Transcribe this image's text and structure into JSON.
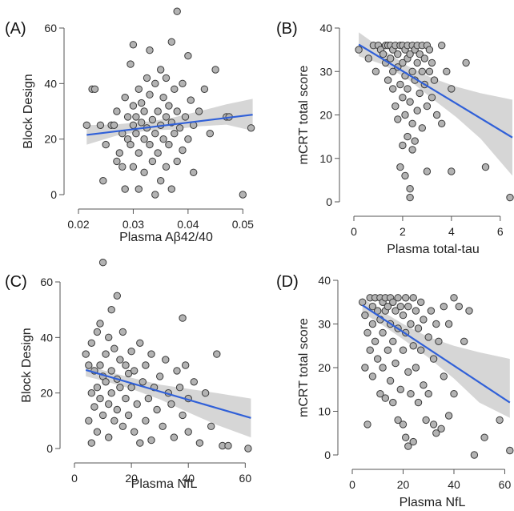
{
  "style": {
    "point_fill": "#b3b3b3",
    "point_stroke": "#3a3a3a",
    "line_color": "#3060d8",
    "band_color": "#cfcfcf",
    "axis_color": "#555555"
  },
  "chart_data": [
    {
      "panel": "(A)",
      "type": "scatter",
      "xlabel": "Plasma Aβ42/40",
      "ylabel": "Block Design",
      "xlim": [
        0.02,
        0.052
      ],
      "ylim": [
        0,
        60
      ],
      "xticks": [
        0.02,
        0.03,
        0.04,
        0.05
      ],
      "xtick_labels": [
        "0.02",
        "0.03",
        "0.04",
        "0.05"
      ],
      "yticks": [
        0,
        20,
        40,
        60
      ],
      "ytick_labels": [
        "0",
        "20",
        "40",
        "60"
      ],
      "fit": {
        "x": [
          0.0215,
          0.0518
        ],
        "y": [
          21.5,
          28.8
        ]
      },
      "band": {
        "x": [
          0.0215,
          0.027,
          0.033,
          0.037,
          0.042,
          0.047,
          0.0518
        ],
        "upper": [
          25.0,
          25.3,
          26.4,
          27.6,
          30.0,
          32.5,
          34.5
        ],
        "lower": [
          18.0,
          21.3,
          23.2,
          23.4,
          24.6,
          25.2,
          23.0
        ]
      },
      "points": [
        [
          0.0215,
          25
        ],
        [
          0.0225,
          38
        ],
        [
          0.023,
          38
        ],
        [
          0.024,
          25
        ],
        [
          0.0245,
          5
        ],
        [
          0.025,
          18
        ],
        [
          0.026,
          25
        ],
        [
          0.0265,
          25
        ],
        [
          0.027,
          12
        ],
        [
          0.027,
          30
        ],
        [
          0.0275,
          15
        ],
        [
          0.028,
          10
        ],
        [
          0.028,
          22
        ],
        [
          0.0285,
          2
        ],
        [
          0.0285,
          35
        ],
        [
          0.029,
          20
        ],
        [
          0.029,
          28
        ],
        [
          0.0295,
          47
        ],
        [
          0.0295,
          18
        ],
        [
          0.03,
          54
        ],
        [
          0.03,
          25
        ],
        [
          0.03,
          32
        ],
        [
          0.03,
          10
        ],
        [
          0.0305,
          22
        ],
        [
          0.0305,
          28
        ],
        [
          0.031,
          15
        ],
        [
          0.031,
          38
        ],
        [
          0.031,
          2
        ],
        [
          0.0315,
          26
        ],
        [
          0.0315,
          33
        ],
        [
          0.032,
          20
        ],
        [
          0.032,
          30
        ],
        [
          0.032,
          8
        ],
        [
          0.0325,
          42
        ],
        [
          0.0325,
          24
        ],
        [
          0.033,
          52
        ],
        [
          0.033,
          18
        ],
        [
          0.033,
          36
        ],
        [
          0.0335,
          27
        ],
        [
          0.0335,
          12
        ],
        [
          0.034,
          40
        ],
        [
          0.034,
          22
        ],
        [
          0.034,
          0
        ],
        [
          0.0345,
          30
        ],
        [
          0.0345,
          15
        ],
        [
          0.035,
          45
        ],
        [
          0.035,
          25
        ],
        [
          0.035,
          5
        ],
        [
          0.0355,
          35
        ],
        [
          0.0355,
          20
        ],
        [
          0.036,
          28
        ],
        [
          0.036,
          42
        ],
        [
          0.036,
          10
        ],
        [
          0.0365,
          32
        ],
        [
          0.0365,
          18
        ],
        [
          0.037,
          55
        ],
        [
          0.037,
          26
        ],
        [
          0.037,
          2
        ],
        [
          0.0375,
          38
        ],
        [
          0.0375,
          22
        ],
        [
          0.038,
          66
        ],
        [
          0.038,
          30
        ],
        [
          0.038,
          12
        ],
        [
          0.0385,
          24
        ],
        [
          0.039,
          40
        ],
        [
          0.039,
          16
        ],
        [
          0.0395,
          28
        ],
        [
          0.04,
          50
        ],
        [
          0.04,
          20
        ],
        [
          0.0405,
          34
        ],
        [
          0.041,
          25
        ],
        [
          0.041,
          8
        ],
        [
          0.042,
          30
        ],
        [
          0.043,
          38
        ],
        [
          0.044,
          22
        ],
        [
          0.045,
          45
        ],
        [
          0.047,
          28
        ],
        [
          0.0475,
          28
        ],
        [
          0.05,
          0
        ],
        [
          0.0515,
          24
        ]
      ]
    },
    {
      "panel": "(B)",
      "type": "scatter",
      "xlabel": "Plasma total-tau",
      "ylabel": "mCRT total score",
      "xlim": [
        0,
        6.5
      ],
      "ylim": [
        0,
        40
      ],
      "xticks": [
        0,
        2,
        4,
        6
      ],
      "xtick_labels": [
        "0",
        "2",
        "4",
        "6"
      ],
      "yticks": [
        0,
        10,
        20,
        30,
        40
      ],
      "ytick_labels": [
        "0",
        "10",
        "20",
        "30",
        "40"
      ],
      "fit": {
        "x": [
          0.2,
          6.5
        ],
        "y": [
          36.2,
          14.8
        ]
      },
      "band": {
        "x": [
          0.2,
          1.2,
          2.2,
          3.2,
          4.2,
          5.2,
          6.5
        ],
        "upper": [
          39.0,
          35.0,
          31.3,
          28.5,
          26.5,
          25.0,
          23.5
        ],
        "lower": [
          33.5,
          31.6,
          28.3,
          23.8,
          19.5,
          14.5,
          6.0
        ]
      },
      "points": [
        [
          0.2,
          35
        ],
        [
          0.6,
          33
        ],
        [
          0.8,
          36
        ],
        [
          0.9,
          30
        ],
        [
          1.0,
          36
        ],
        [
          1.1,
          35
        ],
        [
          1.2,
          34
        ],
        [
          1.3,
          36
        ],
        [
          1.3,
          32
        ],
        [
          1.4,
          36
        ],
        [
          1.4,
          28
        ],
        [
          1.5,
          36
        ],
        [
          1.5,
          33
        ],
        [
          1.6,
          35
        ],
        [
          1.6,
          30
        ],
        [
          1.6,
          26
        ],
        [
          1.7,
          36
        ],
        [
          1.7,
          22
        ],
        [
          1.8,
          34
        ],
        [
          1.8,
          31
        ],
        [
          1.8,
          19
        ],
        [
          1.9,
          36
        ],
        [
          1.9,
          27
        ],
        [
          1.9,
          8
        ],
        [
          2.0,
          36
        ],
        [
          2.0,
          32
        ],
        [
          2.0,
          24
        ],
        [
          2.0,
          13
        ],
        [
          2.1,
          35
        ],
        [
          2.1,
          29
        ],
        [
          2.1,
          20
        ],
        [
          2.1,
          6
        ],
        [
          2.2,
          36
        ],
        [
          2.2,
          33
        ],
        [
          2.2,
          26
        ],
        [
          2.2,
          15
        ],
        [
          2.3,
          34
        ],
        [
          2.3,
          23
        ],
        [
          2.3,
          3
        ],
        [
          2.3,
          1
        ],
        [
          2.4,
          36
        ],
        [
          2.4,
          30
        ],
        [
          2.4,
          18
        ],
        [
          2.4,
          12
        ],
        [
          2.5,
          35
        ],
        [
          2.5,
          28
        ],
        [
          2.5,
          14
        ],
        [
          2.6,
          36
        ],
        [
          2.6,
          32
        ],
        [
          2.6,
          21
        ],
        [
          2.7,
          34
        ],
        [
          2.7,
          25
        ],
        [
          2.8,
          36
        ],
        [
          2.8,
          30
        ],
        [
          2.8,
          17
        ],
        [
          2.9,
          33
        ],
        [
          2.9,
          27
        ],
        [
          3.0,
          36
        ],
        [
          3.0,
          22
        ],
        [
          3.0,
          7
        ],
        [
          3.1,
          35
        ],
        [
          3.1,
          30
        ],
        [
          3.2,
          32
        ],
        [
          3.2,
          24
        ],
        [
          3.3,
          28
        ],
        [
          3.4,
          20
        ],
        [
          3.6,
          36
        ],
        [
          3.6,
          18
        ],
        [
          3.8,
          30
        ],
        [
          4.0,
          7
        ],
        [
          4.0,
          26
        ],
        [
          4.6,
          32
        ],
        [
          5.4,
          8
        ],
        [
          6.4,
          1
        ]
      ]
    },
    {
      "panel": "(C)",
      "type": "scatter",
      "xlabel": "Plasma NfL",
      "ylabel": "Block Design",
      "xlim": [
        0,
        63
      ],
      "ylim": [
        0,
        60
      ],
      "xticks": [
        0,
        20,
        40,
        60
      ],
      "xtick_labels": [
        "0",
        "20",
        "40",
        "60"
      ],
      "yticks": [
        0,
        20,
        40,
        60
      ],
      "ytick_labels": [
        "0",
        "20",
        "40",
        "60"
      ],
      "fit": {
        "x": [
          4,
          62
        ],
        "y": [
          28.3,
          11.0
        ]
      },
      "band": {
        "x": [
          4,
          10,
          20,
          30,
          40,
          50,
          62
        ],
        "upper": [
          30.5,
          28.2,
          25.5,
          23.0,
          21.5,
          20.0,
          18.0
        ],
        "lower": [
          26.0,
          24.5,
          21.5,
          17.7,
          13.0,
          8.5,
          4.0
        ]
      },
      "points": [
        [
          4,
          34
        ],
        [
          5,
          10
        ],
        [
          5,
          30
        ],
        [
          6,
          2
        ],
        [
          6,
          20
        ],
        [
          6,
          38
        ],
        [
          7,
          15
        ],
        [
          7,
          28
        ],
        [
          8,
          42
        ],
        [
          8,
          22
        ],
        [
          8,
          6
        ],
        [
          9,
          45
        ],
        [
          9,
          30
        ],
        [
          9,
          18
        ],
        [
          10,
          67
        ],
        [
          10,
          26
        ],
        [
          10,
          12
        ],
        [
          11,
          34
        ],
        [
          11,
          24
        ],
        [
          12,
          40
        ],
        [
          12,
          16
        ],
        [
          12,
          4
        ],
        [
          13,
          50
        ],
        [
          13,
          28
        ],
        [
          13,
          20
        ],
        [
          14,
          36
        ],
        [
          14,
          10
        ],
        [
          15,
          55
        ],
        [
          15,
          25
        ],
        [
          15,
          14
        ],
        [
          16,
          32
        ],
        [
          16,
          22
        ],
        [
          17,
          42
        ],
        [
          17,
          8
        ],
        [
          18,
          30
        ],
        [
          18,
          18
        ],
        [
          19,
          27
        ],
        [
          19,
          12
        ],
        [
          20,
          22
        ],
        [
          20,
          35
        ],
        [
          21,
          6
        ],
        [
          21,
          28
        ],
        [
          22,
          16
        ],
        [
          23,
          38
        ],
        [
          23,
          2
        ],
        [
          24,
          24
        ],
        [
          25,
          30
        ],
        [
          25,
          10
        ],
        [
          26,
          18
        ],
        [
          27,
          34
        ],
        [
          27,
          3
        ],
        [
          28,
          22
        ],
        [
          29,
          14
        ],
        [
          30,
          26
        ],
        [
          31,
          8
        ],
        [
          32,
          32
        ],
        [
          33,
          20
        ],
        [
          34,
          16
        ],
        [
          35,
          4
        ],
        [
          36,
          28
        ],
        [
          37,
          22
        ],
        [
          38,
          47
        ],
        [
          38,
          12
        ],
        [
          39,
          30
        ],
        [
          40,
          18
        ],
        [
          40,
          6
        ],
        [
          42,
          24
        ],
        [
          44,
          2
        ],
        [
          46,
          20
        ],
        [
          48,
          8
        ],
        [
          50,
          34
        ],
        [
          52,
          1
        ],
        [
          54,
          1
        ],
        [
          61,
          0
        ]
      ]
    },
    {
      "panel": "(D)",
      "type": "scatter",
      "xlabel": "Plasma NfL",
      "ylabel": "mCRT total score",
      "xlim": [
        0,
        63
      ],
      "ylim": [
        0,
        40
      ],
      "xticks": [
        0,
        20,
        40,
        60
      ],
      "xtick_labels": [
        "0",
        "20",
        "40",
        "60"
      ],
      "yticks": [
        0,
        10,
        20,
        30,
        40
      ],
      "ytick_labels": [
        "0",
        "10",
        "20",
        "30",
        "40"
      ],
      "fit": {
        "x": [
          4,
          62
        ],
        "y": [
          34.3,
          12.0
        ]
      },
      "band": {
        "x": [
          4,
          10,
          20,
          30,
          40,
          50,
          62
        ],
        "upper": [
          36.0,
          33.5,
          30.0,
          27.0,
          25.0,
          23.5,
          22.0
        ],
        "lower": [
          32.5,
          30.5,
          26.5,
          22.3,
          17.5,
          12.0,
          8.5
        ]
      },
      "points": [
        [
          4,
          35
        ],
        [
          5,
          32
        ],
        [
          5,
          20
        ],
        [
          6,
          7
        ],
        [
          6,
          28
        ],
        [
          7,
          36
        ],
        [
          7,
          24
        ],
        [
          8,
          34
        ],
        [
          8,
          30
        ],
        [
          8,
          18
        ],
        [
          9,
          36
        ],
        [
          9,
          26
        ],
        [
          10,
          33
        ],
        [
          10,
          22
        ],
        [
          11,
          36
        ],
        [
          11,
          31
        ],
        [
          11,
          14
        ],
        [
          12,
          35
        ],
        [
          12,
          28
        ],
        [
          12,
          20
        ],
        [
          13,
          36
        ],
        [
          13,
          33
        ],
        [
          13,
          13
        ],
        [
          14,
          34
        ],
        [
          14,
          24
        ],
        [
          15,
          36
        ],
        [
          15,
          30
        ],
        [
          15,
          17
        ],
        [
          16,
          35
        ],
        [
          16,
          26
        ],
        [
          16,
          12
        ],
        [
          17,
          33
        ],
        [
          17,
          21
        ],
        [
          18,
          36
        ],
        [
          18,
          29
        ],
        [
          18,
          8
        ],
        [
          19,
          34
        ],
        [
          19,
          15
        ],
        [
          20,
          32
        ],
        [
          20,
          24
        ],
        [
          20,
          7
        ],
        [
          21,
          36
        ],
        [
          21,
          28
        ],
        [
          21,
          4
        ],
        [
          22,
          34
        ],
        [
          22,
          19
        ],
        [
          22,
          2
        ],
        [
          23,
          30
        ],
        [
          23,
          14
        ],
        [
          24,
          36
        ],
        [
          24,
          25
        ],
        [
          24,
          3
        ],
        [
          25,
          33
        ],
        [
          25,
          20
        ],
        [
          26,
          29
        ],
        [
          26,
          12
        ],
        [
          27,
          35
        ],
        [
          27,
          24
        ],
        [
          28,
          31
        ],
        [
          28,
          16
        ],
        [
          29,
          8
        ],
        [
          30,
          27
        ],
        [
          30,
          14
        ],
        [
          31,
          33
        ],
        [
          32,
          22
        ],
        [
          32,
          7
        ],
        [
          33,
          30
        ],
        [
          33,
          5
        ],
        [
          34,
          26
        ],
        [
          35,
          6
        ],
        [
          36,
          34
        ],
        [
          36,
          18
        ],
        [
          38,
          30
        ],
        [
          38,
          9
        ],
        [
          40,
          36
        ],
        [
          40,
          14
        ],
        [
          42,
          34
        ],
        [
          44,
          26
        ],
        [
          46,
          33
        ],
        [
          48,
          0
        ],
        [
          52,
          4
        ],
        [
          58,
          8
        ],
        [
          62,
          1
        ]
      ]
    }
  ]
}
